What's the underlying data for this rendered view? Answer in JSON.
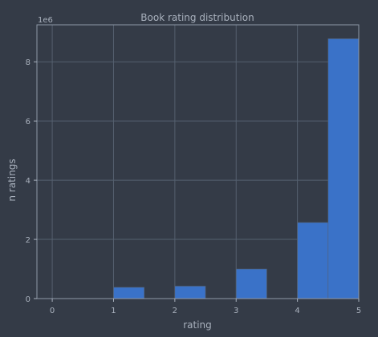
{
  "chart_data": {
    "type": "bar",
    "title": "Book rating distribution",
    "xlabel": "rating",
    "ylabel": "n ratings",
    "offset_text": "1e6",
    "bin_edges": [
      0,
      0.5,
      1,
      1.5,
      2,
      2.5,
      3,
      3.5,
      4,
      4.5,
      5
    ],
    "values": [
      0,
      0,
      380000,
      0,
      420000,
      0,
      1000000,
      0,
      2570000,
      8780000
    ],
    "xlim": [
      -0.25,
      5.0
    ],
    "ylim": [
      0,
      9250000
    ],
    "x_ticks": [
      0,
      1,
      2,
      3,
      4,
      5
    ],
    "x_tick_labels": [
      "0",
      "1",
      "2",
      "3",
      "4",
      "5"
    ],
    "y_ticks": [
      0,
      2000000,
      4000000,
      6000000,
      8000000
    ],
    "y_tick_labels": [
      "0",
      "2",
      "4",
      "6",
      "8"
    ],
    "grid": true,
    "colors": {
      "background": "#343b47",
      "bar": "#3a72c8",
      "grid": "#55606f",
      "text": "#a9b1bd",
      "frame": "#8e98a7"
    }
  }
}
